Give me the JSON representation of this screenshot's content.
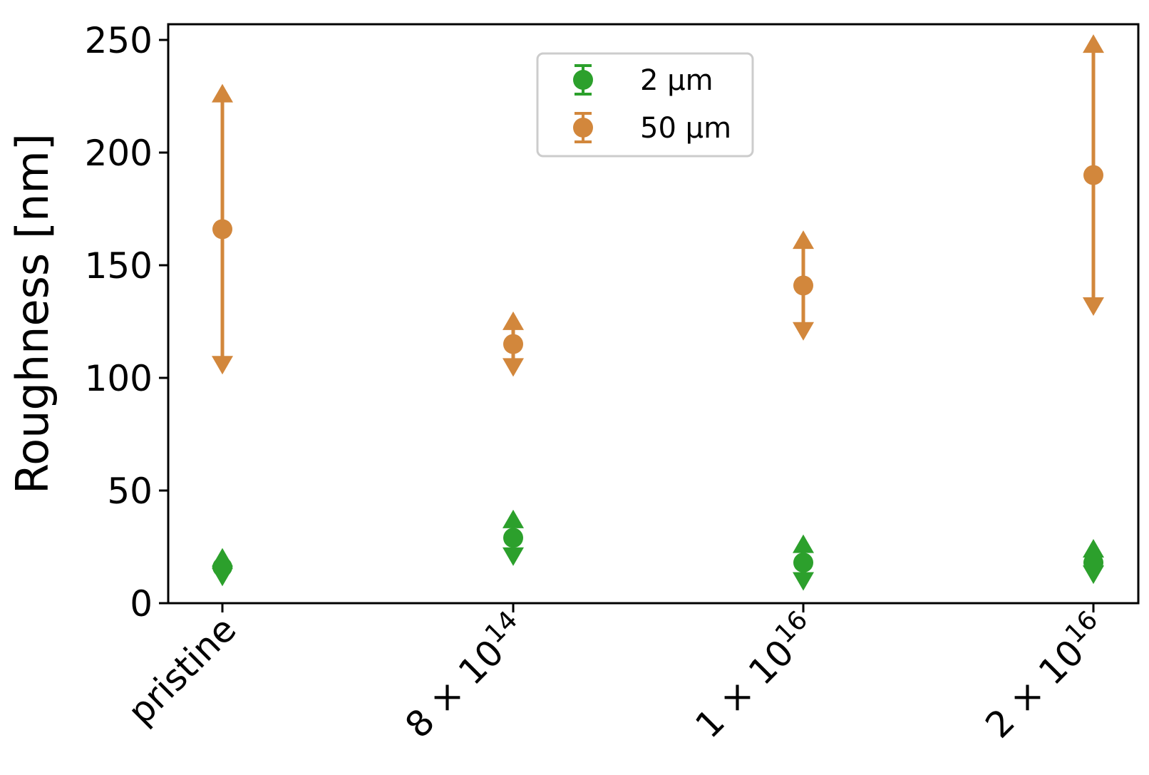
{
  "chart_data": {
    "type": "scatter",
    "title": "",
    "xlabel": "",
    "ylabel": "Roughness [nm]",
    "ylim": [
      0,
      250
    ],
    "yticks": [
      0,
      50,
      100,
      150,
      200,
      250
    ],
    "grid": false,
    "legend_position": "top-center",
    "categories": [
      {
        "base": "pristine",
        "exp": ""
      },
      {
        "base": "8 × 10",
        "exp": "14"
      },
      {
        "base": "1 × 10",
        "exp": "16"
      },
      {
        "base": "2 × 10",
        "exp": "16"
      }
    ],
    "series": [
      {
        "name": "2   µm",
        "color": "#2ca02c",
        "points": [
          {
            "y": 16,
            "lower": 11,
            "upper": 21
          },
          {
            "y": 29,
            "lower": 20,
            "upper": 38
          },
          {
            "y": 18,
            "lower": 9,
            "upper": 27
          },
          {
            "y": 18,
            "lower": 12,
            "upper": 25
          }
        ]
      },
      {
        "name": "50 µm",
        "color": "#d2873c",
        "points": [
          {
            "y": 166,
            "lower": 105,
            "upper": 227
          },
          {
            "y": 115,
            "lower": 104,
            "upper": 126
          },
          {
            "y": 141,
            "lower": 120,
            "upper": 162
          },
          {
            "y": 190,
            "lower": 131,
            "upper": 249
          }
        ]
      }
    ]
  }
}
